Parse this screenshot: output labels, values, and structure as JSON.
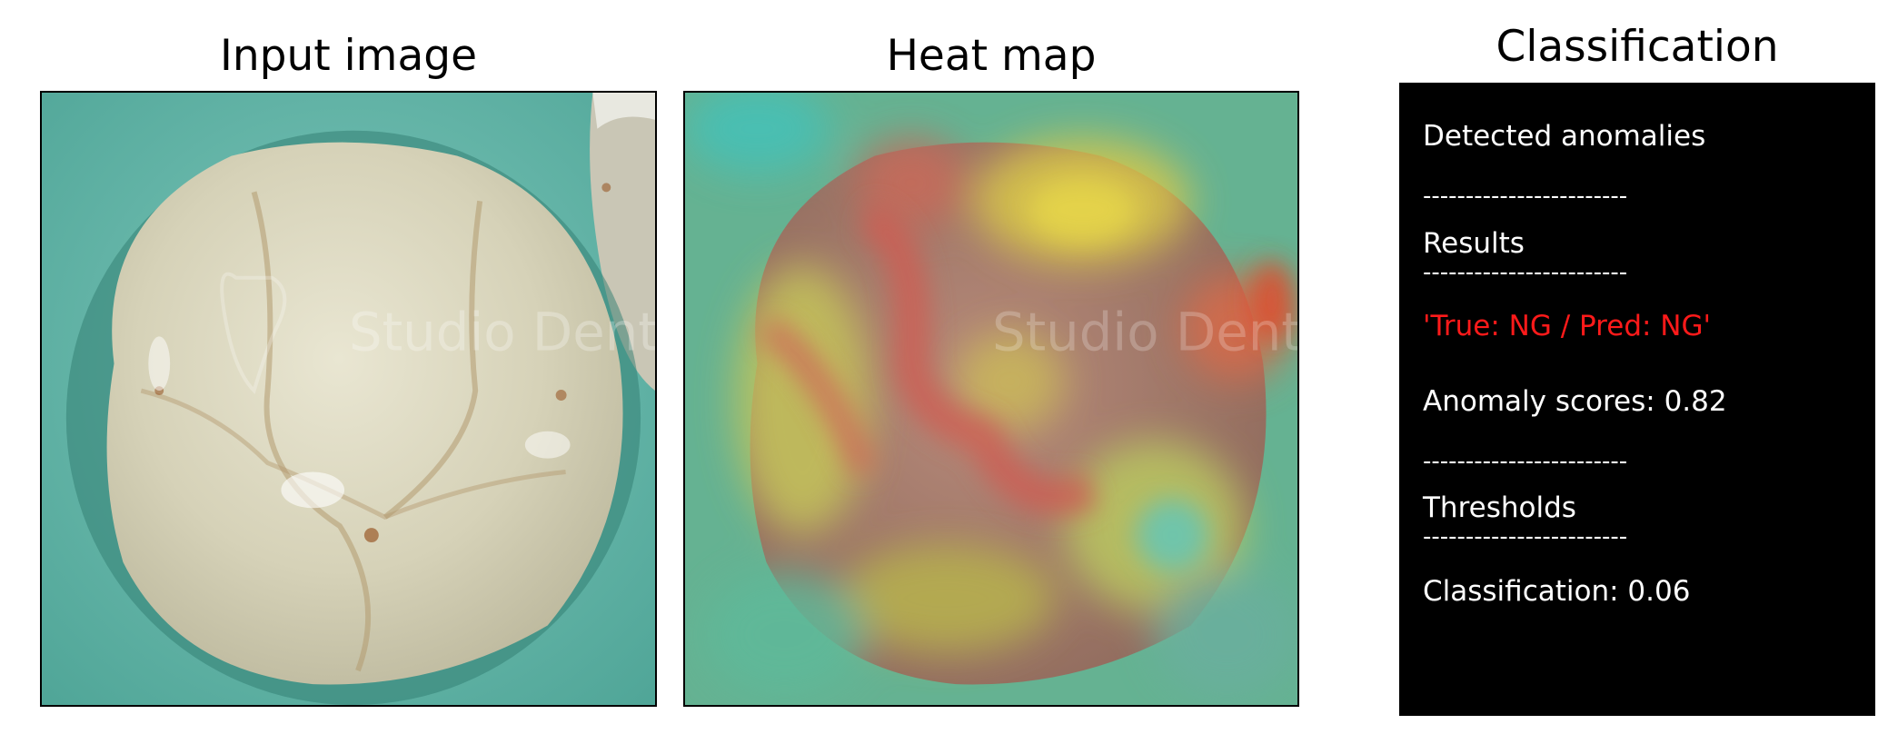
{
  "panels": {
    "input_title": "Input image",
    "heatmap_title": "Heat map",
    "classification_title": "Classification"
  },
  "watermark": "Studio Dentis",
  "classification": {
    "detected": "Detected anomalies",
    "sep1": "------------------------",
    "results_label": "Results",
    "sep2": "------------------------",
    "prediction": "'True: NG / Pred: NG'",
    "anomaly_score": "Anomaly scores: 0.82",
    "sep3": "------------------------",
    "thresholds_label": "Thresholds",
    "sep4": "------------------------",
    "threshold_value": "Classification: 0.06"
  },
  "colors": {
    "background_teal": "#5fb5a8",
    "tooth": "#d8d6c0",
    "prediction_text": "#ff1a1a",
    "panel_bg": "#000000"
  }
}
